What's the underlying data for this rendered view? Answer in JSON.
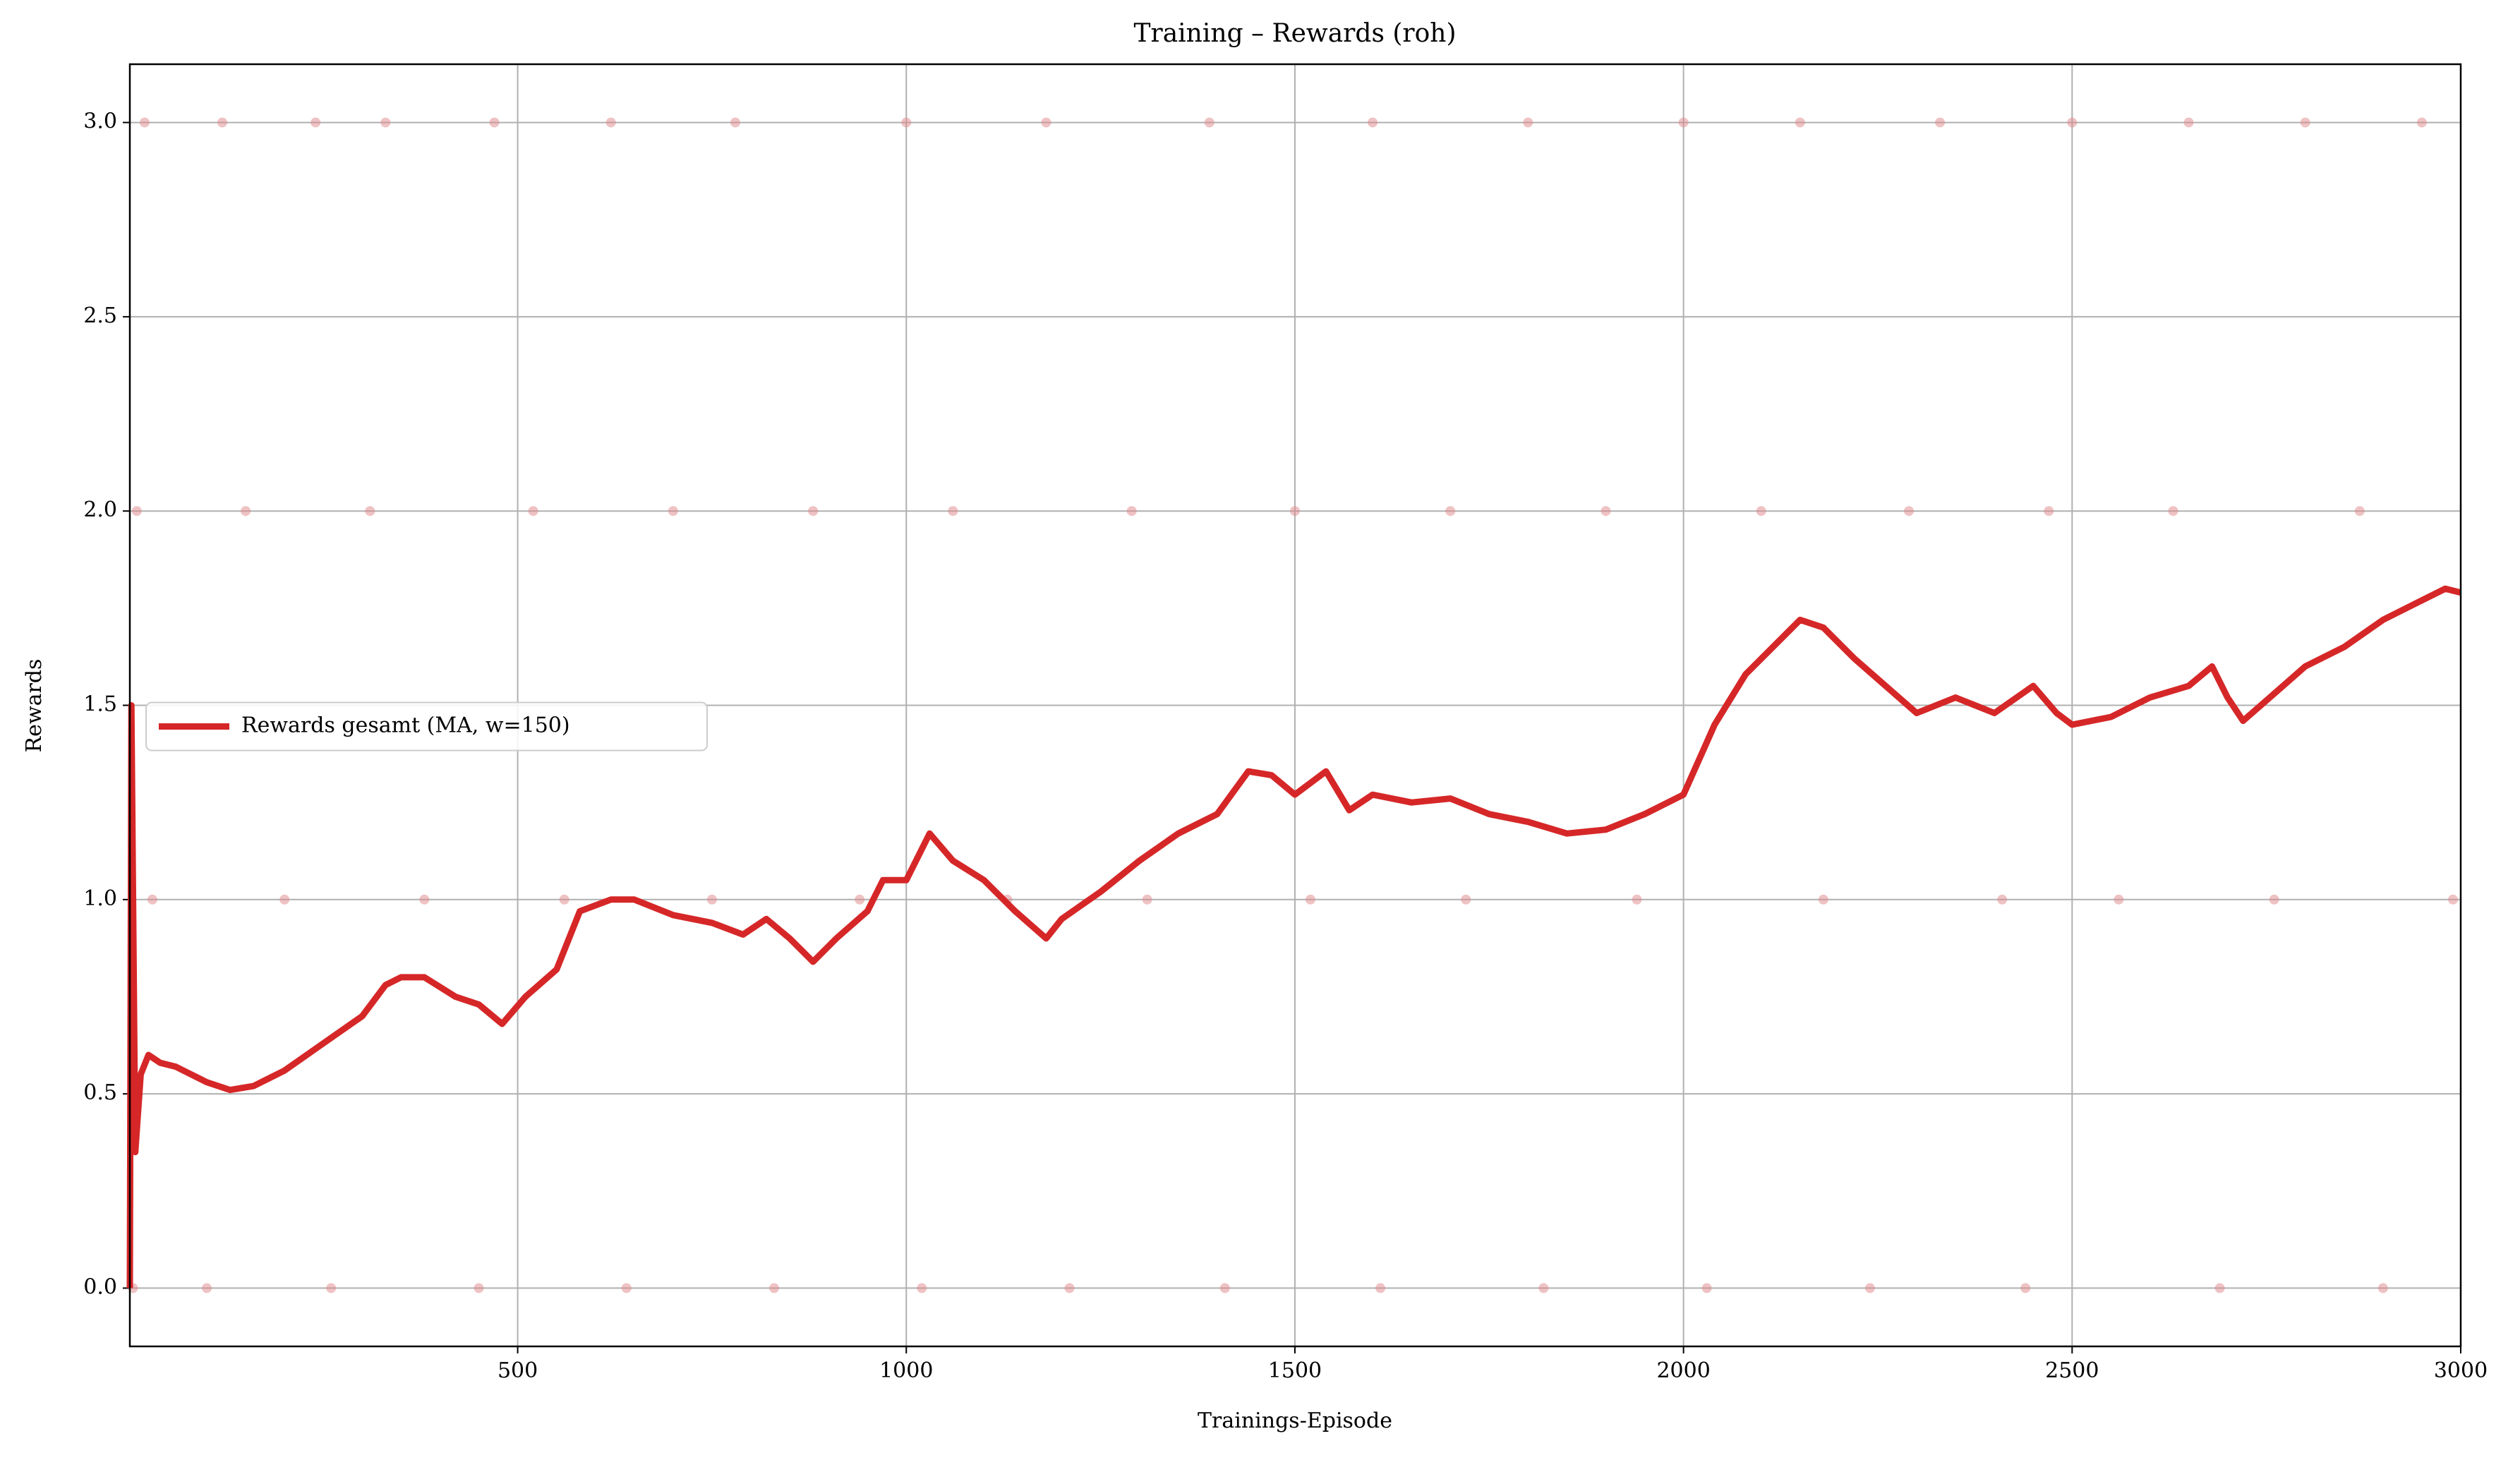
{
  "chart_data": {
    "type": "line",
    "title": "Training – Rewards (roh)",
    "xlabel": "Trainings-Episode",
    "ylabel": "Rewards",
    "xlim": [
      1,
      3000
    ],
    "ylim": [
      -0.15,
      3.15
    ],
    "xticks": [
      500,
      1000,
      1500,
      2000,
      2500,
      3000
    ],
    "yticks": [
      {
        "value": 0,
        "label": "0.0"
      },
      0.5,
      {
        "value": 1,
        "label": "1.0"
      },
      1.5,
      {
        "value": 2,
        "label": "2.0"
      },
      2.5,
      {
        "value": 3,
        "label": "3.0"
      }
    ],
    "grid": true,
    "legend": "center left",
    "series": [
      {
        "type": "scatter",
        "color": "#e0868a",
        "x": [
          20,
          120,
          240,
          330,
          470,
          620,
          780,
          1000,
          1180,
          1390,
          1600,
          1800,
          2000,
          2150,
          2330,
          2500,
          2650,
          2800,
          2950,
          10,
          150,
          310,
          520,
          700,
          880,
          1060,
          1290,
          1500,
          1700,
          1900,
          2100,
          2290,
          2470,
          2630,
          2870,
          30,
          200,
          380,
          560,
          750,
          940,
          1130,
          1310,
          1520,
          1720,
          1940,
          2180,
          2410,
          2560,
          2760,
          2990,
          5,
          100,
          260,
          450,
          640,
          830,
          1020,
          1210,
          1410,
          1610,
          1820,
          2030,
          2240,
          2440,
          2690,
          2900
        ],
        "values": [
          3,
          3,
          3,
          3,
          3,
          3,
          3,
          3,
          3,
          3,
          3,
          3,
          3,
          3,
          3,
          3,
          3,
          3,
          3,
          2,
          2,
          2,
          2,
          2,
          2,
          2,
          2,
          2,
          2,
          2,
          2,
          2,
          2,
          2,
          2,
          1,
          1,
          1,
          1,
          1,
          1,
          1,
          1,
          1,
          1,
          1,
          1,
          1,
          1,
          1,
          1,
          0,
          0,
          0,
          0,
          0,
          0,
          0,
          0,
          0,
          0,
          0,
          0,
          0,
          0,
          0,
          0
        ]
      },
      {
        "type": "line",
        "name": "Rewards gesamt (MA, w=150)",
        "color": "#d62728",
        "x": [
          1,
          3,
          8,
          15,
          25,
          40,
          60,
          80,
          100,
          130,
          160,
          200,
          250,
          300,
          330,
          350,
          380,
          420,
          450,
          480,
          510,
          550,
          580,
          620,
          650,
          700,
          750,
          790,
          820,
          850,
          880,
          910,
          950,
          970,
          1000,
          1030,
          1060,
          1100,
          1140,
          1180,
          1200,
          1250,
          1300,
          1350,
          1400,
          1440,
          1470,
          1500,
          1540,
          1570,
          1600,
          1650,
          1700,
          1750,
          1800,
          1850,
          1900,
          1950,
          2000,
          2040,
          2080,
          2120,
          2150,
          2180,
          2220,
          2260,
          2300,
          2350,
          2400,
          2450,
          2480,
          2500,
          2550,
          2600,
          2650,
          2680,
          2700,
          2720,
          2760,
          2800,
          2850,
          2900,
          2950,
          2980,
          3000
        ],
        "values": [
          0,
          1.5,
          0.35,
          0.55,
          0.6,
          0.58,
          0.57,
          0.55,
          0.53,
          0.51,
          0.52,
          0.56,
          0.63,
          0.7,
          0.78,
          0.8,
          0.8,
          0.75,
          0.73,
          0.68,
          0.75,
          0.82,
          0.97,
          1.0,
          1.0,
          0.96,
          0.94,
          0.91,
          0.95,
          0.9,
          0.84,
          0.9,
          0.97,
          1.05,
          1.05,
          1.17,
          1.1,
          1.05,
          0.97,
          0.9,
          0.95,
          1.02,
          1.1,
          1.17,
          1.22,
          1.33,
          1.32,
          1.27,
          1.33,
          1.23,
          1.27,
          1.25,
          1.26,
          1.22,
          1.2,
          1.17,
          1.18,
          1.22,
          1.27,
          1.45,
          1.58,
          1.66,
          1.72,
          1.7,
          1.62,
          1.55,
          1.48,
          1.52,
          1.48,
          1.55,
          1.48,
          1.45,
          1.47,
          1.52,
          1.55,
          1.6,
          1.52,
          1.46,
          1.53,
          1.6,
          1.65,
          1.72,
          1.77,
          1.8,
          1.79
        ]
      }
    ]
  }
}
